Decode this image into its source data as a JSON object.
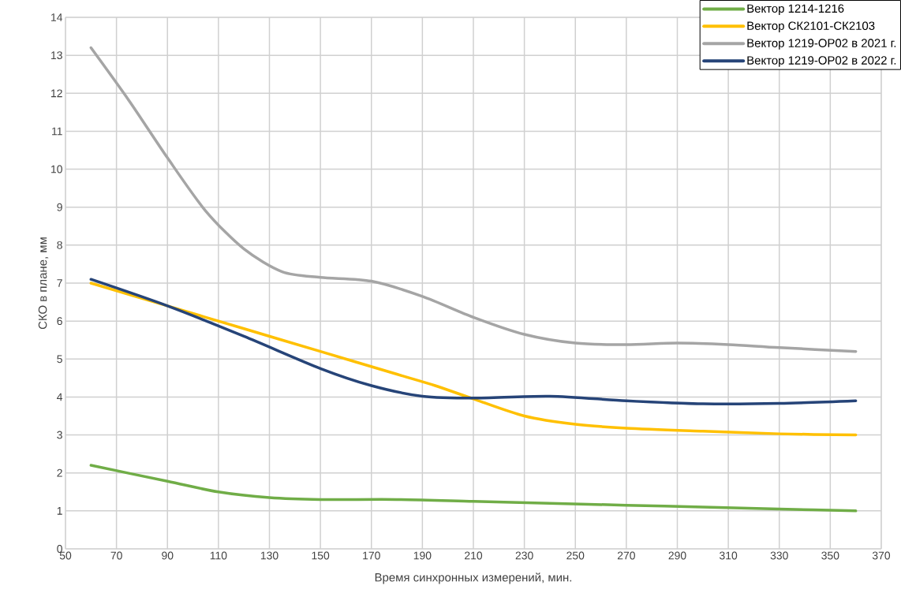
{
  "chart_data": {
    "type": "line",
    "xlabel": "Время синхронных измерений, мин.",
    "ylabel": "СКО в плане, мм",
    "xlim": [
      50,
      370
    ],
    "ylim": [
      0,
      14
    ],
    "xticks": [
      50,
      70,
      90,
      110,
      130,
      150,
      170,
      190,
      210,
      230,
      250,
      270,
      290,
      310,
      330,
      350,
      370
    ],
    "yticks": [
      0,
      1,
      2,
      3,
      4,
      5,
      6,
      7,
      8,
      9,
      10,
      11,
      12,
      13,
      14
    ],
    "grid": true,
    "legend": "top right",
    "marker": "none",
    "line_style": "solid",
    "series": [
      {
        "name": "Вектор 1214-1216",
        "color": "#70ad47",
        "x": [
          60,
          90,
          110,
          130,
          150,
          180,
          210,
          240,
          270,
          300,
          330,
          360
        ],
        "values": [
          2.2,
          1.78,
          1.5,
          1.35,
          1.3,
          1.3,
          1.25,
          1.2,
          1.15,
          1.1,
          1.05,
          1.0
        ]
      },
      {
        "name": "Вектор СК2101-СК2103",
        "color": "#ffc000",
        "x": [
          60,
          90,
          120,
          150,
          180,
          195,
          210,
          230,
          250,
          270,
          300,
          330,
          360
        ],
        "values": [
          7.0,
          6.4,
          5.8,
          5.2,
          4.6,
          4.3,
          3.95,
          3.5,
          3.28,
          3.18,
          3.1,
          3.03,
          3.0
        ]
      },
      {
        "name": "Вектор 1219-ОР02 в 2021 г.",
        "color": "#a5a5a5",
        "x": [
          60,
          75,
          90,
          105,
          120,
          135,
          150,
          170,
          190,
          210,
          230,
          250,
          270,
          290,
          310,
          330,
          360
        ],
        "values": [
          13.2,
          11.8,
          10.3,
          8.9,
          7.9,
          7.3,
          7.15,
          7.05,
          6.65,
          6.1,
          5.65,
          5.42,
          5.38,
          5.42,
          5.38,
          5.3,
          5.2
        ]
      },
      {
        "name": "Вектор 1219-ОР02 в 2022 г.",
        "color": "#264478",
        "x": [
          60,
          90,
          120,
          150,
          170,
          190,
          210,
          240,
          270,
          300,
          330,
          360
        ],
        "values": [
          7.1,
          6.4,
          5.6,
          4.75,
          4.3,
          4.02,
          3.97,
          4.02,
          3.9,
          3.82,
          3.83,
          3.9
        ]
      }
    ]
  }
}
